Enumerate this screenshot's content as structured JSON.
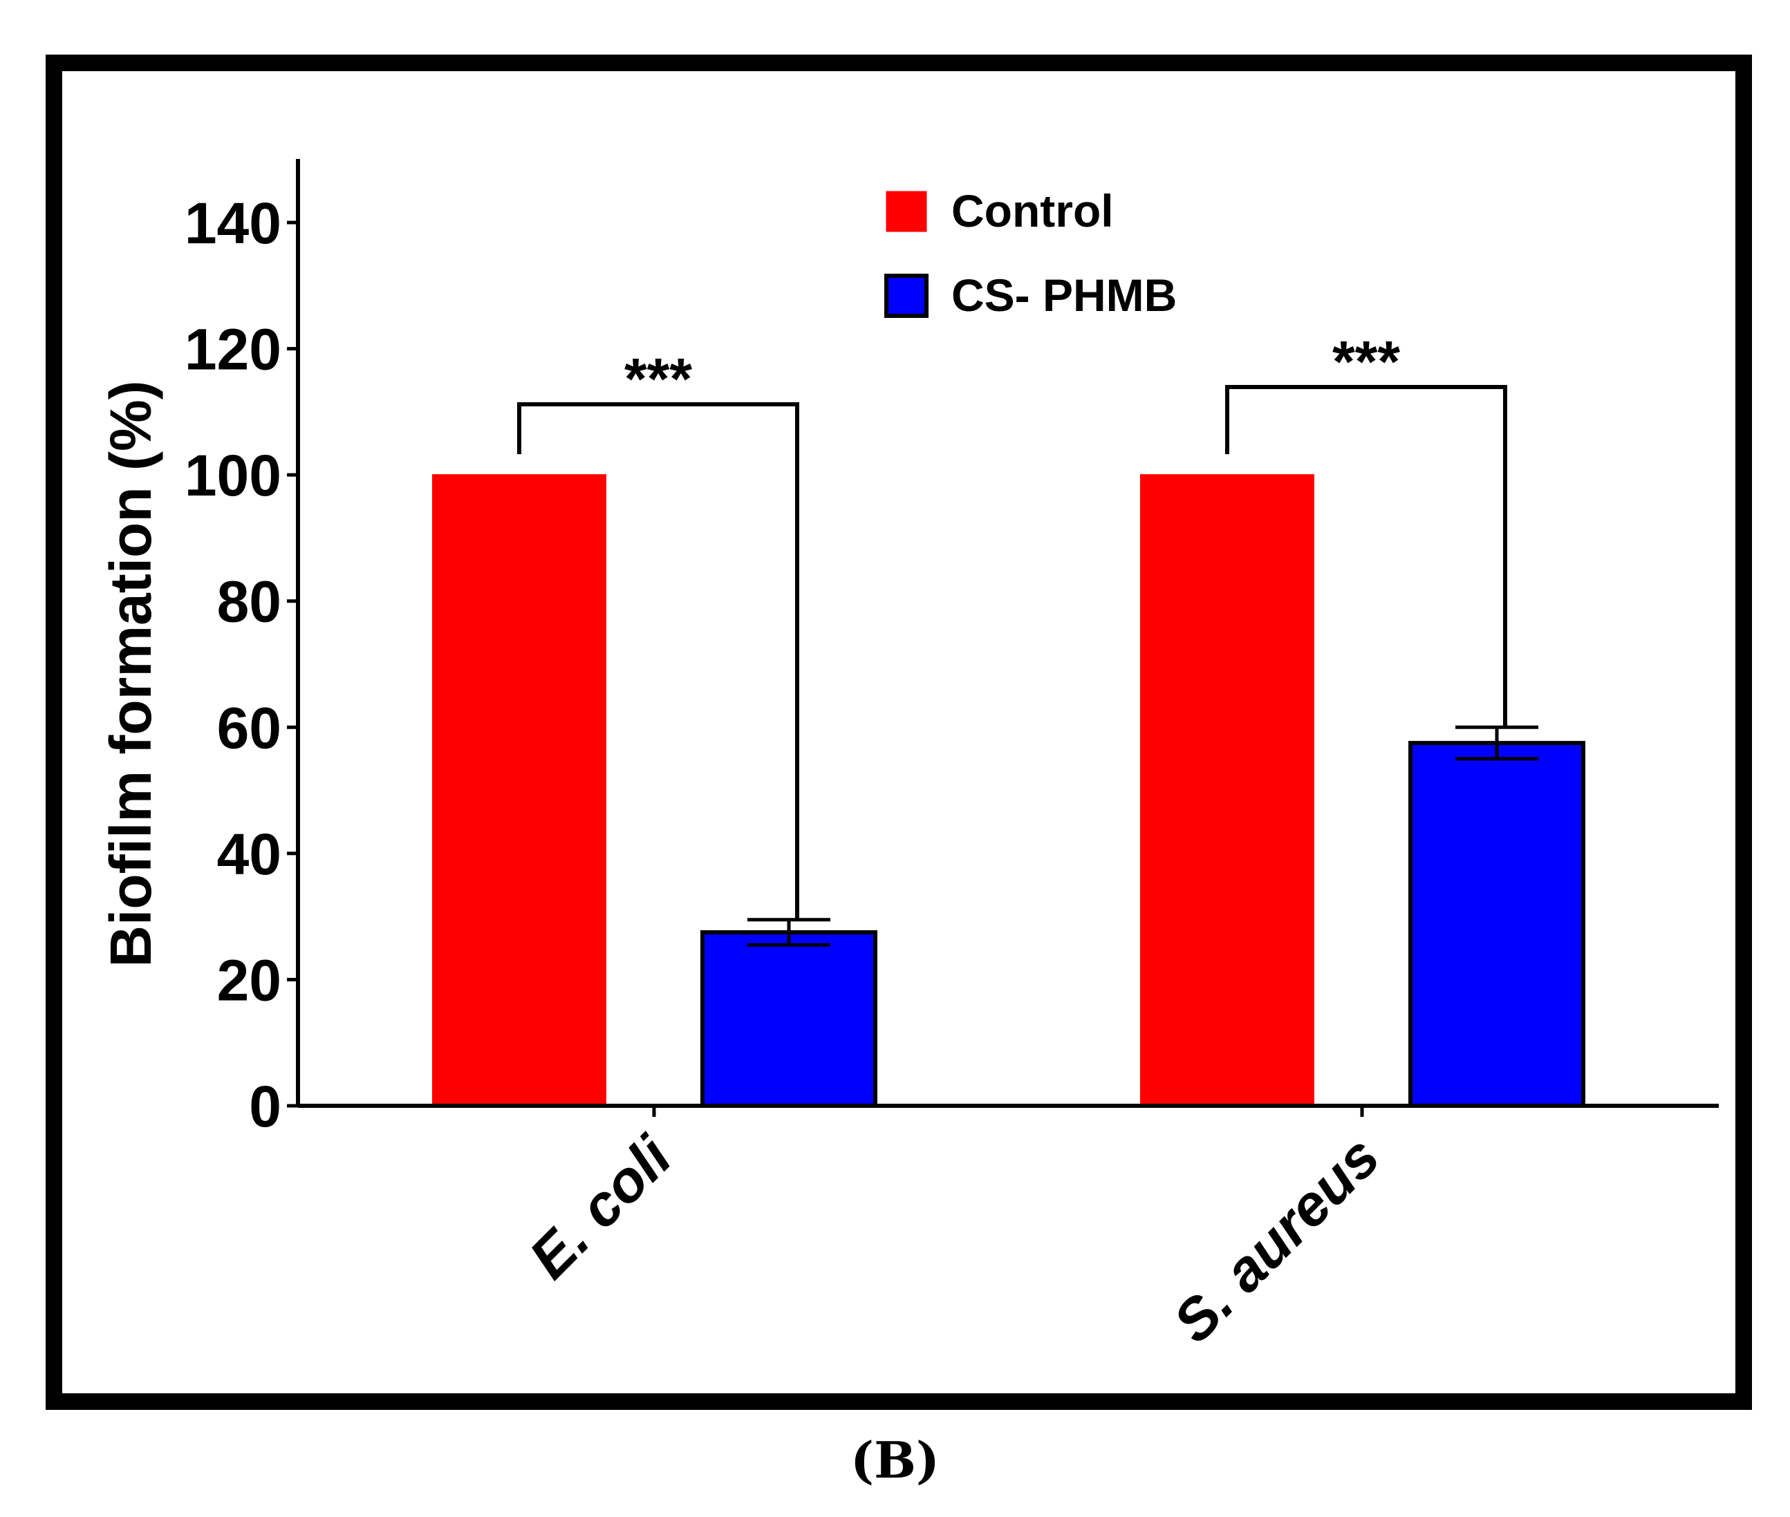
{
  "chart_data": {
    "type": "bar",
    "title": "",
    "xlabel": "",
    "ylabel": "Biofilm formation (%)",
    "ylim": [
      0,
      150
    ],
    "yticks": [
      0,
      20,
      40,
      60,
      80,
      100,
      120,
      140
    ],
    "categories": [
      "E. coli",
      "S. aureus"
    ],
    "series": [
      {
        "name": "Control",
        "color": "#ff0000",
        "values": [
          100,
          100
        ],
        "errors": [
          0,
          0
        ]
      },
      {
        "name": "CS- PHMB",
        "color": "#0000ff",
        "values": [
          27.5,
          57.5
        ],
        "errors": [
          2,
          2.5
        ]
      }
    ],
    "significance": [
      {
        "category": "E. coli",
        "label": "***"
      },
      {
        "category": "S. aureus",
        "label": "***"
      }
    ],
    "legend_position": "top-center",
    "grid": false
  },
  "caption": "(B)"
}
